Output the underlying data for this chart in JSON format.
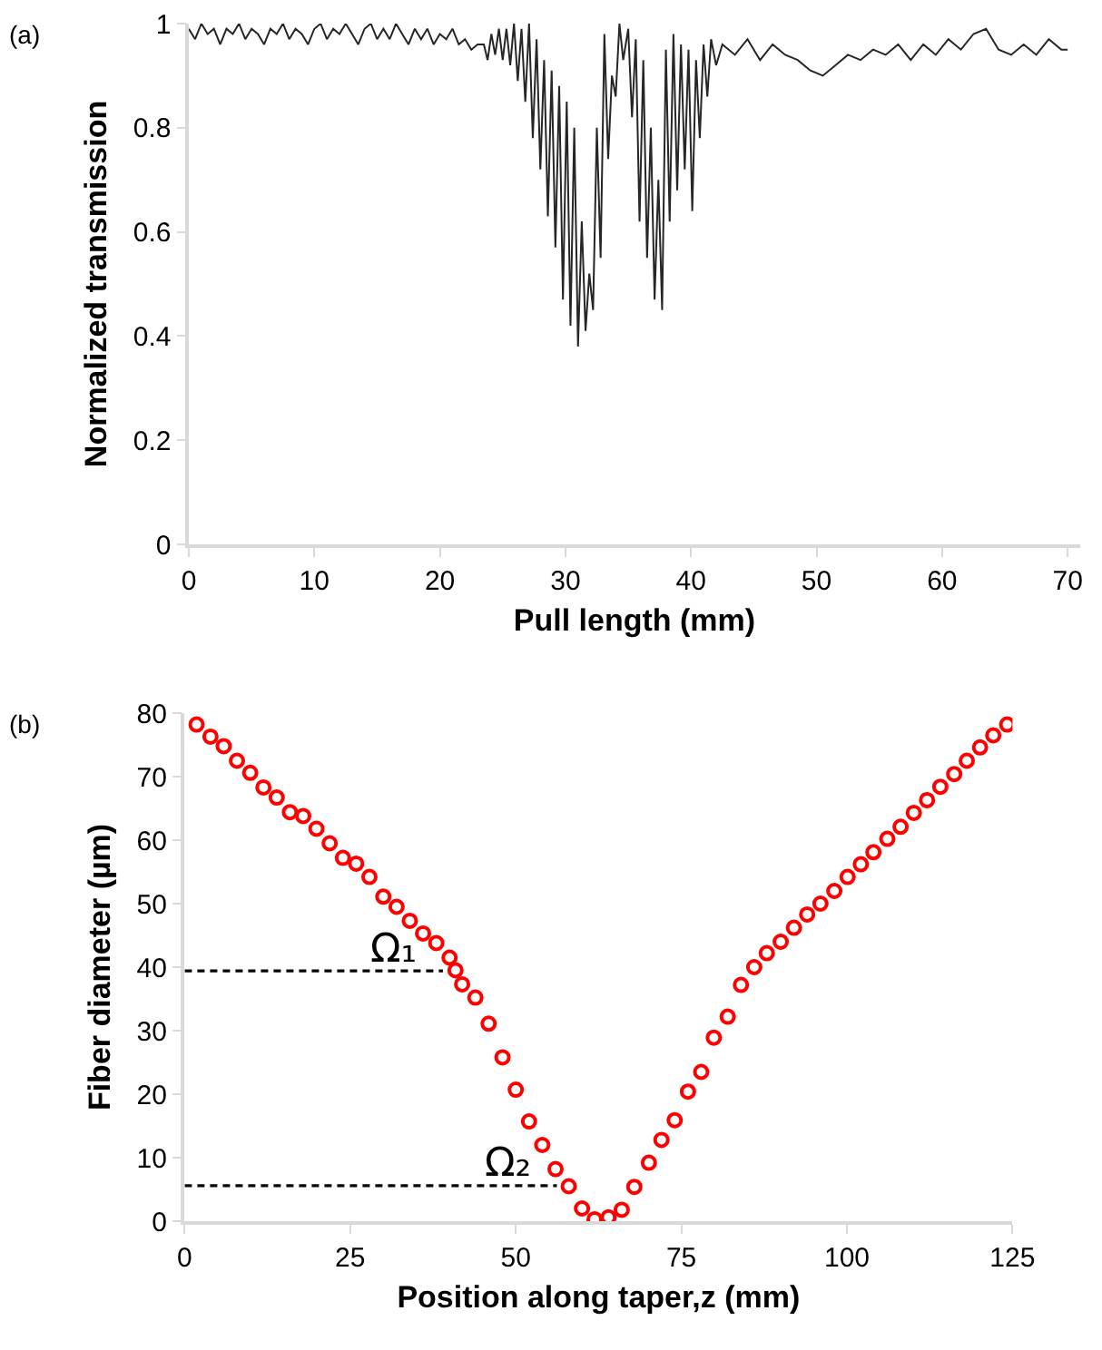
{
  "chart_data": [
    {
      "type": "line",
      "annotations": [
        "(a)"
      ],
      "xlabel": "Pull length (mm)",
      "ylabel": "Normalized transmission",
      "color": "#262626",
      "marker": "none",
      "line_style": "solid",
      "grid": false,
      "x": [
        0,
        0.5,
        1,
        1.5,
        2,
        2.5,
        3,
        3.5,
        4,
        4.5,
        5,
        5.5,
        6,
        6.5,
        7,
        7.5,
        8,
        8.5,
        9,
        9.5,
        10,
        10.5,
        11,
        11.5,
        12,
        12.5,
        13,
        13.5,
        14,
        14.5,
        15,
        15.5,
        16,
        16.5,
        17,
        17.5,
        18,
        18.5,
        19,
        19.5,
        20,
        20.5,
        21,
        21.5,
        22,
        22.5,
        23,
        23.5,
        23.8,
        24.1,
        24.4,
        24.7,
        25.0,
        25.3,
        25.6,
        25.9,
        26.2,
        26.5,
        26.8,
        27.1,
        27.4,
        27.7,
        28.0,
        28.3,
        28.6,
        28.9,
        29.2,
        29.5,
        29.8,
        30.1,
        30.4,
        30.7,
        31.0,
        31.3,
        31.6,
        31.9,
        32.2,
        32.5,
        32.8,
        33.1,
        33.4,
        33.7,
        34.0,
        34.3,
        34.6,
        35.0,
        35.3,
        35.6,
        35.9,
        36.2,
        36.5,
        36.8,
        37.1,
        37.4,
        37.7,
        38.0,
        38.3,
        38.6,
        38.9,
        39.2,
        39.5,
        39.8,
        40.1,
        40.4,
        40.7,
        41.0,
        41.3,
        41.6,
        42.0,
        42.5,
        43.5,
        44.5,
        45.5,
        46.5,
        47.5,
        48.5,
        49.5,
        50.5,
        51.5,
        52.5,
        53.5,
        54.5,
        55.5,
        56.5,
        57.5,
        58.5,
        59.5,
        60.5,
        61.5,
        62.5,
        63.5,
        64.5,
        65.5,
        66.5,
        67.5,
        68.5,
        69.5,
        70
      ],
      "values": [
        0.99,
        0.97,
        1.0,
        0.98,
        0.99,
        0.96,
        0.99,
        0.98,
        1.0,
        0.97,
        0.99,
        0.98,
        0.96,
        0.99,
        0.98,
        1.0,
        0.97,
        0.99,
        0.98,
        0.96,
        0.99,
        1.0,
        0.97,
        0.99,
        0.98,
        1.0,
        0.98,
        0.96,
        0.99,
        1.0,
        0.97,
        0.99,
        0.97,
        1.0,
        0.98,
        0.96,
        0.99,
        0.97,
        0.99,
        0.96,
        0.98,
        0.97,
        0.99,
        0.96,
        0.97,
        0.95,
        0.96,
        0.96,
        0.93,
        0.98,
        0.94,
        0.99,
        0.93,
        0.99,
        0.92,
        1.0,
        0.89,
        0.99,
        0.85,
        1.0,
        0.78,
        0.97,
        0.72,
        0.93,
        0.63,
        0.91,
        0.57,
        0.88,
        0.47,
        0.85,
        0.42,
        0.8,
        0.38,
        0.62,
        0.41,
        0.52,
        0.45,
        0.8,
        0.55,
        0.98,
        0.74,
        0.9,
        0.86,
        1.0,
        0.93,
        0.99,
        0.82,
        0.97,
        0.62,
        0.93,
        0.55,
        0.8,
        0.47,
        0.7,
        0.45,
        0.95,
        0.62,
        0.98,
        0.68,
        0.96,
        0.72,
        0.95,
        0.64,
        0.93,
        0.78,
        0.96,
        0.86,
        0.97,
        0.92,
        0.96,
        0.94,
        0.97,
        0.93,
        0.96,
        0.94,
        0.93,
        0.91,
        0.9,
        0.92,
        0.94,
        0.93,
        0.95,
        0.94,
        0.96,
        0.93,
        0.96,
        0.94,
        0.97,
        0.95,
        0.98,
        0.99,
        0.95,
        0.94,
        0.96,
        0.94,
        0.97,
        0.95,
        0.95
      ],
      "xlim": [
        0,
        71
      ],
      "xticks": [
        0,
        10,
        20,
        30,
        40,
        50,
        60,
        70
      ],
      "ylim": [
        0,
        1
      ],
      "yticks": [
        0,
        0.2,
        0.4,
        0.6,
        0.8,
        1
      ]
    },
    {
      "type": "scatter",
      "annotations": [
        "(b)",
        "Ω₁",
        "Ω₂"
      ],
      "xlabel": "Position along taper,z (mm)",
      "ylabel": "Fiber diameter (µm)",
      "grid": false,
      "series": [
        {
          "color": "#ff0000",
          "marker": "circle",
          "x": [
            1.8,
            3.9,
            5.9,
            7.9,
            9.9,
            11.9,
            13.9,
            15.9,
            17.9,
            19.9,
            21.9,
            23.9,
            25.9,
            27.9,
            30.0,
            32.0,
            34.0,
            36.0,
            38.0,
            40.0,
            40.9,
            41.9,
            43.9,
            45.9,
            48.0,
            50.0,
            52.0,
            54.0,
            56.0,
            58.0,
            60.0,
            61.9,
            64.0,
            66.0,
            67.9,
            70.1,
            72.0,
            74.0,
            76.0,
            78.0,
            79.9,
            82.0,
            84.0,
            86.0,
            87.9,
            90.0,
            92.0,
            94.0,
            96.0,
            98.1,
            100.1,
            102.1,
            104.0,
            106.1,
            108.1,
            110.1,
            112.1,
            114.1,
            116.2,
            118.1,
            120.1,
            122.1,
            124.2
          ],
          "values": [
            78.2,
            76.3,
            74.8,
            72.5,
            70.6,
            68.3,
            66.7,
            64.4,
            63.8,
            61.8,
            59.5,
            57.2,
            56.3,
            54.2,
            51.1,
            49.5,
            47.3,
            45.3,
            43.8,
            41.5,
            39.5,
            37.3,
            35.2,
            31.1,
            25.8,
            20.7,
            15.7,
            12.0,
            8.2,
            5.5,
            2.0,
            0.3,
            0.6,
            1.8,
            5.4,
            9.2,
            12.8,
            15.9,
            20.4,
            23.5,
            28.9,
            32.2,
            37.2,
            40.0,
            42.2,
            44.0,
            46.2,
            48.3,
            50.0,
            52.0,
            54.2,
            56.2,
            58.1,
            60.2,
            62.1,
            64.3,
            66.3,
            68.4,
            70.4,
            72.5,
            74.6,
            76.5,
            78.2
          ]
        },
        {
          "type": "line",
          "color": "#000000",
          "line_style": "dashed",
          "marker": "none",
          "x": [
            0,
            39.0
          ],
          "values": [
            39.4,
            39.4
          ]
        },
        {
          "type": "line",
          "color": "#000000",
          "line_style": "dashed",
          "marker": "none",
          "x": [
            0,
            56.2
          ],
          "values": [
            5.6,
            5.6
          ]
        }
      ],
      "xlim": [
        0,
        125
      ],
      "xticks": [
        0,
        25,
        50,
        75,
        100,
        125
      ],
      "ylim": [
        0,
        80
      ],
      "yticks": [
        0,
        10,
        20,
        30,
        40,
        50,
        60,
        70,
        80
      ]
    }
  ]
}
